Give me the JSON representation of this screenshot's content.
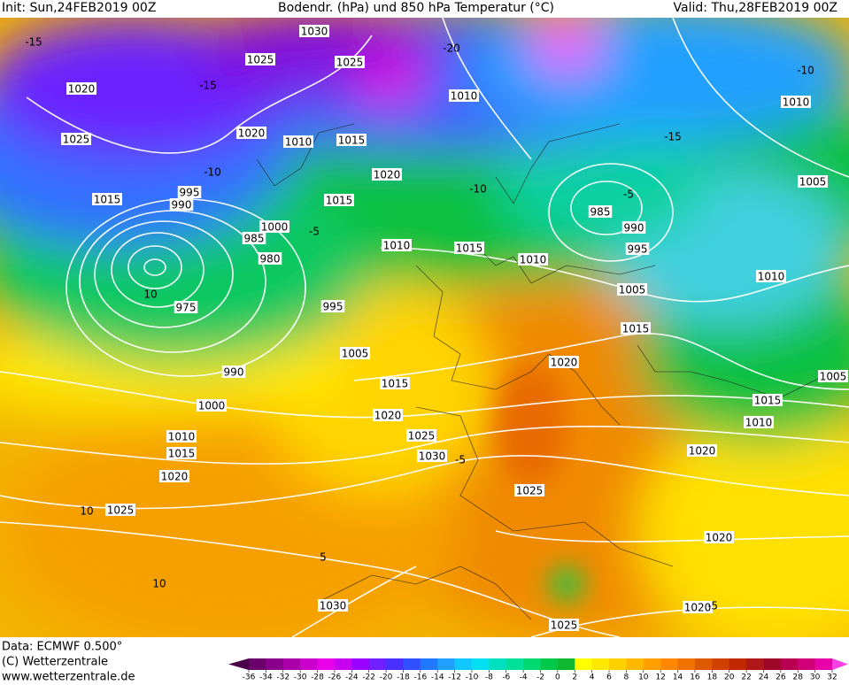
{
  "header": {
    "init": "Init: Sun,24FEB2019 00Z",
    "title": "Bodendr. (hPa) und 850 hPa Temperatur (°C)",
    "valid": "Valid: Thu,28FEB2019 00Z"
  },
  "map": {
    "isobar_labels": [
      "1030",
      "1025",
      "1025",
      "1020",
      "1010",
      "1010",
      "1025",
      "1020",
      "1010",
      "1015",
      "1020",
      "1005",
      "995",
      "990",
      "1015",
      "1015",
      "985",
      "990",
      "985",
      "1000",
      "1010",
      "1015",
      "995",
      "1010",
      "980",
      "1010",
      "1005",
      "975",
      "995",
      "1015",
      "1005",
      "1020",
      "990",
      "1005",
      "1015",
      "1000",
      "1015",
      "1020",
      "1010",
      "1010",
      "1025",
      "1015",
      "1020",
      "1030",
      "1020",
      "1025",
      "1025",
      "1020",
      "1030",
      "1020",
      "1025"
    ],
    "temperature_labels": [
      "-15",
      "-20",
      "-15",
      "-10",
      "-5",
      "-10",
      "-15",
      "-10",
      "-5",
      "5",
      "10",
      "10",
      "-5",
      "-5",
      "10"
    ]
  },
  "footer": {
    "data": "Data: ECMWF   0.500°",
    "copyright": "(C) Wetterzentrale",
    "url": "www.wetterzentrale.de"
  },
  "legend": {
    "ticks": [
      -36,
      -34,
      -32,
      -30,
      -28,
      -26,
      -24,
      -22,
      -20,
      -18,
      -16,
      -14,
      -12,
      -10,
      -8,
      -6,
      -4,
      -2,
      0,
      2,
      4,
      6,
      8,
      10,
      12,
      14,
      16,
      18,
      20,
      22,
      24,
      26,
      28,
      30,
      32
    ]
  }
}
